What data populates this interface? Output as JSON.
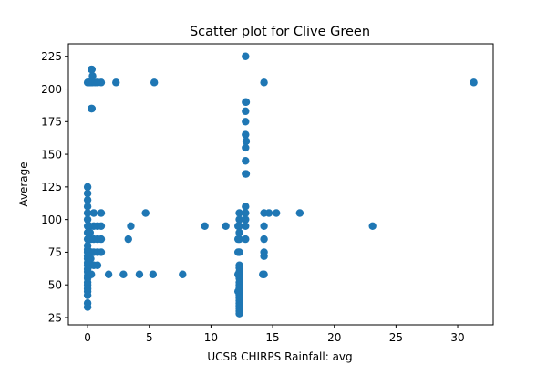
{
  "chart_data": {
    "type": "scatter",
    "title": "Scatter plot for Clive Green",
    "xlabel": "UCSB CHIRPS Rainfall: avg",
    "ylabel": "Average",
    "xlim": [
      -1.56,
      32.88
    ],
    "ylim": [
      19.4,
      234.6
    ],
    "xticks": [
      0,
      5,
      10,
      15,
      20,
      25,
      30
    ],
    "yticks": [
      25,
      50,
      75,
      100,
      125,
      150,
      175,
      200,
      225
    ],
    "grid": false,
    "legend": "none",
    "color": "#1f77b4",
    "points": [
      [
        0,
        205
      ],
      [
        0.05,
        205
      ],
      [
        0.1,
        205
      ],
      [
        0.15,
        205
      ],
      [
        0.2,
        205
      ],
      [
        0.3,
        205
      ],
      [
        0.4,
        205
      ],
      [
        0.6,
        205
      ],
      [
        0.8,
        205
      ],
      [
        1.1,
        205
      ],
      [
        2.3,
        205
      ],
      [
        5.4,
        205
      ],
      [
        14.3,
        205
      ],
      [
        31.3,
        205
      ],
      [
        0.3,
        215
      ],
      [
        0.35,
        215
      ],
      [
        0.4,
        210
      ],
      [
        0.3,
        185
      ],
      [
        0.35,
        185
      ],
      [
        0,
        125
      ],
      [
        0,
        120
      ],
      [
        0,
        115
      ],
      [
        0,
        110
      ],
      [
        0,
        105
      ],
      [
        0,
        100
      ],
      [
        0,
        95
      ],
      [
        0,
        90
      ],
      [
        0,
        85
      ],
      [
        0,
        80
      ],
      [
        0,
        77
      ],
      [
        0,
        75
      ],
      [
        0,
        72
      ],
      [
        0,
        70
      ],
      [
        0,
        67
      ],
      [
        0,
        65
      ],
      [
        0,
        62
      ],
      [
        0,
        60
      ],
      [
        0,
        57
      ],
      [
        0,
        55
      ],
      [
        0,
        52
      ],
      [
        0,
        50
      ],
      [
        0,
        47
      ],
      [
        0,
        45
      ],
      [
        0,
        42
      ],
      [
        0,
        36
      ],
      [
        0,
        33
      ],
      [
        0.15,
        95
      ],
      [
        0.2,
        90
      ],
      [
        0.25,
        85
      ],
      [
        0.3,
        75
      ],
      [
        0.25,
        70
      ],
      [
        0.2,
        65
      ],
      [
        0.3,
        58
      ],
      [
        0.5,
        105
      ],
      [
        0.5,
        95
      ],
      [
        0.5,
        85
      ],
      [
        0.5,
        75
      ],
      [
        0.5,
        65
      ],
      [
        0.8,
        95
      ],
      [
        0.8,
        85
      ],
      [
        0.8,
        75
      ],
      [
        0.8,
        65
      ],
      [
        1.1,
        105
      ],
      [
        1.1,
        95
      ],
      [
        1.1,
        85
      ],
      [
        1.1,
        75
      ],
      [
        1.7,
        58
      ],
      [
        2.9,
        58
      ],
      [
        3.3,
        85
      ],
      [
        3.5,
        95
      ],
      [
        4.2,
        58
      ],
      [
        4.7,
        105
      ],
      [
        5.3,
        58
      ],
      [
        7.7,
        58
      ],
      [
        9.5,
        95
      ],
      [
        11.2,
        95
      ],
      [
        12.8,
        225
      ],
      [
        12.8,
        190
      ],
      [
        12.85,
        190
      ],
      [
        12.8,
        183
      ],
      [
        12.8,
        175
      ],
      [
        12.8,
        165
      ],
      [
        12.85,
        160
      ],
      [
        12.8,
        155
      ],
      [
        12.8,
        145
      ],
      [
        12.8,
        135
      ],
      [
        12.85,
        135
      ],
      [
        12.8,
        110
      ],
      [
        12.8,
        105
      ],
      [
        12.8,
        100
      ],
      [
        12.8,
        95
      ],
      [
        12.8,
        85
      ],
      [
        12.3,
        105
      ],
      [
        12.3,
        100
      ],
      [
        12.3,
        95
      ],
      [
        12.3,
        90
      ],
      [
        12.3,
        85
      ],
      [
        12.3,
        75
      ],
      [
        12.3,
        65
      ],
      [
        12.3,
        63
      ],
      [
        12.3,
        60
      ],
      [
        12.3,
        58
      ],
      [
        12.3,
        55
      ],
      [
        12.3,
        52
      ],
      [
        12.3,
        50
      ],
      [
        12.3,
        48
      ],
      [
        12.3,
        45
      ],
      [
        12.3,
        42
      ],
      [
        12.3,
        40
      ],
      [
        12.3,
        38
      ],
      [
        12.3,
        36
      ],
      [
        12.3,
        34
      ],
      [
        12.3,
        32
      ],
      [
        12.3,
        30
      ],
      [
        12.3,
        28
      ],
      [
        12.2,
        95
      ],
      [
        12.2,
        85
      ],
      [
        12.2,
        75
      ],
      [
        12.2,
        58
      ],
      [
        12.2,
        45
      ],
      [
        14.3,
        105
      ],
      [
        14.3,
        95
      ],
      [
        14.3,
        85
      ],
      [
        14.3,
        75
      ],
      [
        14.3,
        72
      ],
      [
        14.3,
        58
      ],
      [
        14.2,
        58
      ],
      [
        14.7,
        105
      ],
      [
        15.3,
        105
      ],
      [
        17.2,
        105
      ],
      [
        23.1,
        95
      ]
    ]
  }
}
